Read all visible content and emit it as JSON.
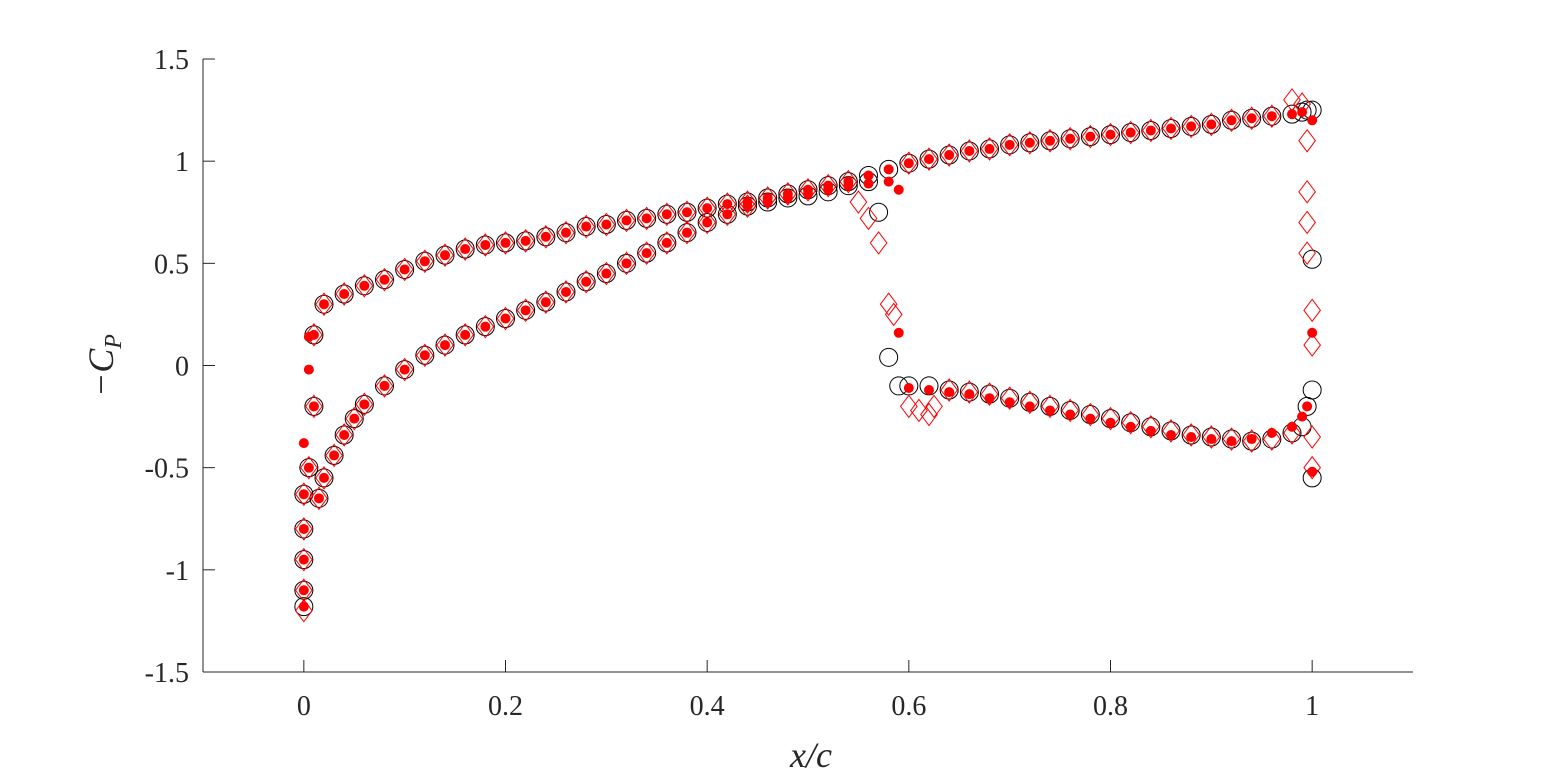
{
  "chart_data": {
    "type": "scatter",
    "xlabel": "x/c",
    "ylabel": "−C_P",
    "xlim": [
      -0.1,
      1.1
    ],
    "ylim": [
      -1.5,
      1.5
    ],
    "xticks": [
      "0",
      "0.2",
      "0.4",
      "0.6",
      "0.8",
      "1"
    ],
    "xtick_values": [
      0,
      0.2,
      0.4,
      0.6,
      0.8,
      1
    ],
    "yticks": [
      "1.5",
      "1",
      "0.5",
      "0",
      "-0.5",
      "-1",
      "-1.5"
    ],
    "ytick_values": [
      1.5,
      1,
      0.5,
      0,
      -0.5,
      -1,
      -1.5
    ],
    "grid": false,
    "legend": "none",
    "series": [
      {
        "marker": "circle-open",
        "color": "#000000",
        "upper_curve": {
          "x": [
            0.01,
            0.02,
            0.04,
            0.06,
            0.08,
            0.1,
            0.12,
            0.14,
            0.16,
            0.18,
            0.2,
            0.22,
            0.24,
            0.26,
            0.28,
            0.3,
            0.32,
            0.34,
            0.36,
            0.38,
            0.4,
            0.42,
            0.44,
            0.46,
            0.48,
            0.5,
            0.52,
            0.54,
            0.56,
            0.58,
            0.6,
            0.62,
            0.64,
            0.66,
            0.68,
            0.7,
            0.72,
            0.74,
            0.76,
            0.78,
            0.8,
            0.82,
            0.84,
            0.86,
            0.88,
            0.9,
            0.92,
            0.94,
            0.96,
            0.98,
            0.99,
            0.995,
            1.0
          ],
          "y": [
            0.15,
            0.3,
            0.35,
            0.39,
            0.42,
            0.47,
            0.51,
            0.54,
            0.57,
            0.59,
            0.6,
            0.61,
            0.63,
            0.65,
            0.68,
            0.69,
            0.71,
            0.72,
            0.74,
            0.75,
            0.77,
            0.79,
            0.8,
            0.82,
            0.84,
            0.86,
            0.88,
            0.9,
            0.93,
            0.96,
            0.99,
            1.01,
            1.03,
            1.05,
            1.06,
            1.08,
            1.09,
            1.1,
            1.11,
            1.12,
            1.13,
            1.14,
            1.15,
            1.16,
            1.17,
            1.18,
            1.2,
            1.21,
            1.22,
            1.23,
            1.24,
            1.25,
            1.25
          ]
        },
        "lower_curve": {
          "x": [
            0.0,
            0.0,
            0.0,
            0.0,
            0.0,
            0.005,
            0.01,
            0.015,
            0.02,
            0.03,
            0.04,
            0.05,
            0.06,
            0.08,
            0.1,
            0.12,
            0.14,
            0.16,
            0.18,
            0.2,
            0.22,
            0.24,
            0.26,
            0.28,
            0.3,
            0.32,
            0.34,
            0.36,
            0.38,
            0.4,
            0.42,
            0.44,
            0.46,
            0.48,
            0.5,
            0.52,
            0.54,
            0.56
          ],
          "y": [
            -1.18,
            -1.1,
            -0.95,
            -0.8,
            -0.63,
            -0.5,
            -0.2,
            -0.65,
            -0.55,
            -0.44,
            -0.34,
            -0.26,
            -0.19,
            -0.1,
            -0.02,
            0.05,
            0.1,
            0.15,
            0.19,
            0.23,
            0.27,
            0.31,
            0.36,
            0.41,
            0.45,
            0.5,
            0.55,
            0.6,
            0.65,
            0.7,
            0.74,
            0.78,
            0.8,
            0.82,
            0.83,
            0.85,
            0.88,
            0.9
          ]
        },
        "shock_points": {
          "x": [
            0.57,
            0.58,
            0.59,
            0.6
          ],
          "y": [
            0.75,
            0.04,
            -0.1,
            -0.1
          ]
        },
        "aft_lower": {
          "x": [
            0.62,
            0.64,
            0.66,
            0.68,
            0.7,
            0.72,
            0.74,
            0.76,
            0.78,
            0.8,
            0.82,
            0.84,
            0.86,
            0.88,
            0.9,
            0.92,
            0.94,
            0.96,
            0.98,
            0.99,
            0.995,
            1.0,
            1.0,
            1.0
          ],
          "y": [
            -0.1,
            -0.12,
            -0.13,
            -0.14,
            -0.16,
            -0.18,
            -0.2,
            -0.22,
            -0.24,
            -0.26,
            -0.28,
            -0.3,
            -0.32,
            -0.34,
            -0.35,
            -0.36,
            -0.37,
            -0.36,
            -0.33,
            -0.3,
            -0.2,
            -0.12,
            0.52,
            -0.55
          ]
        }
      },
      {
        "marker": "diamond-open",
        "color": "#ff0000",
        "upper_curve": {
          "x": [
            0.01,
            0.02,
            0.04,
            0.06,
            0.08,
            0.1,
            0.12,
            0.14,
            0.16,
            0.18,
            0.2,
            0.22,
            0.24,
            0.26,
            0.28,
            0.3,
            0.32,
            0.34,
            0.36,
            0.38,
            0.4,
            0.42,
            0.44,
            0.46,
            0.48,
            0.5,
            0.52,
            0.54,
            0.6,
            0.62,
            0.64,
            0.66,
            0.68,
            0.7,
            0.72,
            0.74,
            0.76,
            0.78,
            0.8,
            0.82,
            0.84,
            0.86,
            0.88,
            0.9,
            0.92,
            0.94,
            0.96,
            0.98,
            0.99
          ],
          "y": [
            0.15,
            0.3,
            0.35,
            0.39,
            0.42,
            0.47,
            0.51,
            0.54,
            0.57,
            0.59,
            0.6,
            0.61,
            0.63,
            0.65,
            0.68,
            0.69,
            0.71,
            0.72,
            0.74,
            0.75,
            0.77,
            0.79,
            0.8,
            0.82,
            0.84,
            0.86,
            0.88,
            0.9,
            0.99,
            1.01,
            1.03,
            1.05,
            1.06,
            1.08,
            1.09,
            1.1,
            1.11,
            1.12,
            1.13,
            1.14,
            1.15,
            1.16,
            1.17,
            1.18,
            1.2,
            1.21,
            1.22,
            1.3,
            1.28
          ]
        },
        "shock_points": {
          "x": [
            0.55,
            0.56,
            0.57,
            0.58,
            0.585,
            0.6,
            0.61,
            0.62,
            0.625,
            0.995,
            0.995,
            0.995,
            0.995,
            1.0,
            1.0,
            1.0,
            1.0
          ],
          "y": [
            0.8,
            0.72,
            0.6,
            0.3,
            0.25,
            -0.2,
            -0.22,
            -0.24,
            -0.2,
            1.1,
            0.85,
            0.7,
            0.55,
            0.27,
            0.1,
            -0.35,
            -0.5
          ]
        },
        "lower_curve": {
          "x": [
            0.0,
            0.0,
            0.0,
            0.0,
            0.0,
            0.005,
            0.01,
            0.015,
            0.02,
            0.03,
            0.04,
            0.05,
            0.06,
            0.08,
            0.1,
            0.12,
            0.14,
            0.16,
            0.18,
            0.2,
            0.22,
            0.24,
            0.26,
            0.28,
            0.3,
            0.32,
            0.34,
            0.36,
            0.38,
            0.4,
            0.42,
            0.44
          ],
          "y": [
            -1.2,
            -1.1,
            -0.95,
            -0.8,
            -0.63,
            -0.5,
            -0.2,
            -0.65,
            -0.55,
            -0.44,
            -0.34,
            -0.26,
            -0.19,
            -0.1,
            -0.02,
            0.05,
            0.1,
            0.15,
            0.19,
            0.23,
            0.27,
            0.31,
            0.36,
            0.41,
            0.45,
            0.5,
            0.55,
            0.6,
            0.65,
            0.7,
            0.74,
            0.78
          ]
        },
        "aft_lower": {
          "x": [
            0.64,
            0.66,
            0.68,
            0.7,
            0.72,
            0.74,
            0.76,
            0.78,
            0.8,
            0.82,
            0.84,
            0.86,
            0.88,
            0.9,
            0.92,
            0.94,
            0.96,
            0.98
          ],
          "y": [
            -0.12,
            -0.13,
            -0.14,
            -0.16,
            -0.18,
            -0.2,
            -0.22,
            -0.24,
            -0.26,
            -0.28,
            -0.3,
            -0.32,
            -0.34,
            -0.35,
            -0.36,
            -0.37,
            -0.36,
            -0.33
          ]
        }
      },
      {
        "marker": "dot-filled",
        "color": "#ff0000",
        "upper_curve": {
          "x": [
            0.01,
            0.02,
            0.04,
            0.06,
            0.08,
            0.1,
            0.12,
            0.14,
            0.16,
            0.18,
            0.2,
            0.22,
            0.24,
            0.26,
            0.28,
            0.3,
            0.32,
            0.34,
            0.36,
            0.38,
            0.4,
            0.42,
            0.44,
            0.46,
            0.48,
            0.5,
            0.52,
            0.54,
            0.56,
            0.58,
            0.6,
            0.62,
            0.64,
            0.66,
            0.68,
            0.7,
            0.72,
            0.74,
            0.76,
            0.78,
            0.8,
            0.82,
            0.84,
            0.86,
            0.88,
            0.9,
            0.92,
            0.94,
            0.96,
            0.98,
            0.99,
            1.0
          ],
          "y": [
            0.15,
            0.3,
            0.35,
            0.39,
            0.42,
            0.47,
            0.51,
            0.54,
            0.57,
            0.59,
            0.6,
            0.61,
            0.63,
            0.65,
            0.68,
            0.69,
            0.71,
            0.72,
            0.74,
            0.75,
            0.77,
            0.79,
            0.8,
            0.82,
            0.84,
            0.86,
            0.88,
            0.9,
            0.93,
            0.96,
            0.99,
            1.01,
            1.03,
            1.05,
            1.06,
            1.08,
            1.09,
            1.1,
            1.11,
            1.12,
            1.13,
            1.14,
            1.15,
            1.16,
            1.17,
            1.18,
            1.2,
            1.21,
            1.22,
            1.23,
            1.24,
            1.2
          ]
        },
        "lower_curve": {
          "x": [
            0.0,
            0.0,
            0.0,
            0.0,
            0.0,
            0.005,
            0.01,
            0.015,
            0.02,
            0.03,
            0.04,
            0.05,
            0.06,
            0.08,
            0.1,
            0.12,
            0.14,
            0.16,
            0.18,
            0.2,
            0.22,
            0.24,
            0.26,
            0.28,
            0.3,
            0.32,
            0.34,
            0.36,
            0.38,
            0.4,
            0.42,
            0.44,
            0.46,
            0.48,
            0.5,
            0.52,
            0.54,
            0.56,
            0.58
          ],
          "y": [
            -1.18,
            -1.1,
            -0.95,
            -0.8,
            -0.63,
            -0.5,
            -0.2,
            -0.65,
            -0.55,
            -0.44,
            -0.34,
            -0.26,
            -0.19,
            -0.1,
            -0.02,
            0.05,
            0.1,
            0.15,
            0.19,
            0.23,
            0.27,
            0.31,
            0.36,
            0.41,
            0.45,
            0.5,
            0.55,
            0.6,
            0.65,
            0.7,
            0.74,
            0.78,
            0.8,
            0.82,
            0.84,
            0.86,
            0.88,
            0.89,
            0.9
          ]
        },
        "shock_points": {
          "x": [
            0.59,
            0.59,
            1.0,
            1.0,
            0.0,
            0.005,
            0.005
          ],
          "y": [
            0.86,
            0.16,
            0.16,
            -0.52,
            -0.38,
            -0.02,
            0.14
          ]
        },
        "aft_lower": {
          "x": [
            0.6,
            0.62,
            0.64,
            0.66,
            0.68,
            0.7,
            0.72,
            0.74,
            0.76,
            0.78,
            0.8,
            0.82,
            0.84,
            0.86,
            0.88,
            0.9,
            0.92,
            0.94,
            0.96,
            0.98,
            0.99,
            0.995
          ],
          "y": [
            -0.11,
            -0.12,
            -0.13,
            -0.14,
            -0.16,
            -0.18,
            -0.2,
            -0.22,
            -0.24,
            -0.26,
            -0.28,
            -0.3,
            -0.32,
            -0.34,
            -0.35,
            -0.36,
            -0.37,
            -0.36,
            -0.33,
            -0.3,
            -0.25,
            -0.2
          ]
        }
      }
    ]
  }
}
